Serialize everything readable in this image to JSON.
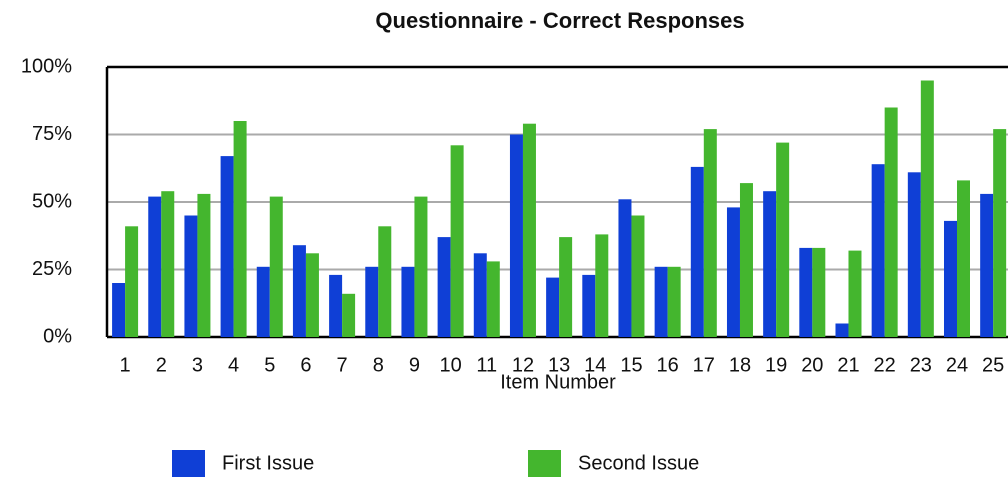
{
  "chart_data": {
    "type": "bar",
    "title": "Questionnaire - Correct Responses",
    "x_label": "Item Number",
    "categories": [
      "1",
      "2",
      "3",
      "4",
      "5",
      "6",
      "7",
      "8",
      "9",
      "10",
      "11",
      "12",
      "13",
      "14",
      "15",
      "16",
      "17",
      "18",
      "19",
      "20",
      "21",
      "22",
      "23",
      "24",
      "25"
    ],
    "series": [
      {
        "name": "First Issue",
        "color": "#0f3fd6",
        "values": [
          20,
          52,
          45,
          67,
          26,
          34,
          23,
          26,
          26,
          37,
          31,
          75,
          22,
          23,
          51,
          26,
          63,
          48,
          54,
          33,
          5,
          64,
          61,
          43,
          53
        ]
      },
      {
        "name": "Second Issue",
        "color": "#44b62e",
        "values": [
          41,
          54,
          53,
          80,
          52,
          31,
          16,
          41,
          52,
          71,
          28,
          79,
          37,
          38,
          45,
          26,
          77,
          57,
          72,
          33,
          32,
          85,
          95,
          58,
          77
        ]
      }
    ],
    "ylim": [
      0,
      100
    ],
    "yticks": [
      {
        "value": 0,
        "label": "0%"
      },
      {
        "value": 25,
        "label": "25%"
      },
      {
        "value": 50,
        "label": "50%"
      },
      {
        "value": 75,
        "label": "75%"
      },
      {
        "value": 100,
        "label": "100%"
      }
    ],
    "grid": true,
    "legend": "bottom"
  }
}
